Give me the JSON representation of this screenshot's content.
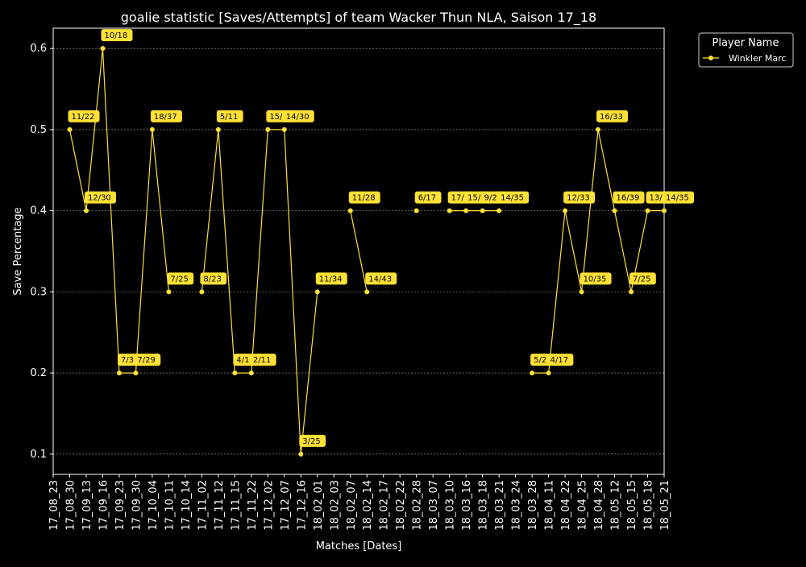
{
  "chart_data": {
    "type": "line",
    "title": "goalie statistic [Saves/Attempts] of team Wacker Thun NLA, Saison 17_18",
    "xlabel": "Matches [Dates]",
    "ylabel": "Save Percentage",
    "ylim": [
      0.075,
      0.625
    ],
    "yticks": [
      "0.1",
      "0.2",
      "0.3",
      "0.4",
      "0.5",
      "0.6"
    ],
    "grid": true,
    "legend": {
      "title": "Player Name",
      "placement": "outside-top-right"
    },
    "categories": [
      "17_08_23",
      "17_08_30",
      "17_09_13",
      "17_09_16",
      "17_09_23",
      "17_09_30",
      "17_10_04",
      "17_10_11",
      "17_10_14",
      "17_11_02",
      "17_11_12",
      "17_11_15",
      "17_11_22",
      "17_12_02",
      "17_12_07",
      "17_12_16",
      "18_02_01",
      "18_02_03",
      "18_02_07",
      "18_02_14",
      "18_02_17",
      "18_02_22",
      "18_02_28",
      "18_03_07",
      "18_03_10",
      "18_03_16",
      "18_03_18",
      "18_03_21",
      "18_03_24",
      "18_03_28",
      "18_04_11",
      "18_04_22",
      "18_04_25",
      "18_04_28",
      "18_05_12",
      "18_05_15",
      "18_05_18",
      "18_05_21"
    ],
    "series": [
      {
        "name": "Winkler Marc",
        "color": "#ffe135",
        "values": [
          null,
          0.5,
          0.4,
          0.6,
          0.2,
          0.2,
          0.5,
          0.3,
          null,
          0.3,
          0.5,
          0.2,
          0.2,
          0.5,
          0.5,
          0.1,
          0.3,
          null,
          0.4,
          0.3,
          null,
          null,
          0.4,
          null,
          0.4,
          0.4,
          0.4,
          0.4,
          null,
          0.2,
          0.2,
          0.4,
          0.3,
          0.5,
          0.4,
          0.3,
          0.4,
          0.4
        ],
        "labels": [
          null,
          "11/22",
          "12/30",
          "10/18",
          "7/3",
          "7/29",
          "18/37",
          "7/25",
          null,
          "8/23",
          "5/11",
          "4/1",
          "2/11",
          "15/3",
          "14/30",
          "3/25",
          "11/34",
          null,
          "11/28",
          "14/43",
          null,
          null,
          "6/17",
          null,
          "17/",
          "15/",
          "9/2",
          "14/35",
          null,
          "5/2",
          "4/17",
          "12/33",
          "10/35",
          "16/33",
          "16/39",
          "7/25",
          "13/3",
          "14/35"
        ]
      }
    ]
  }
}
